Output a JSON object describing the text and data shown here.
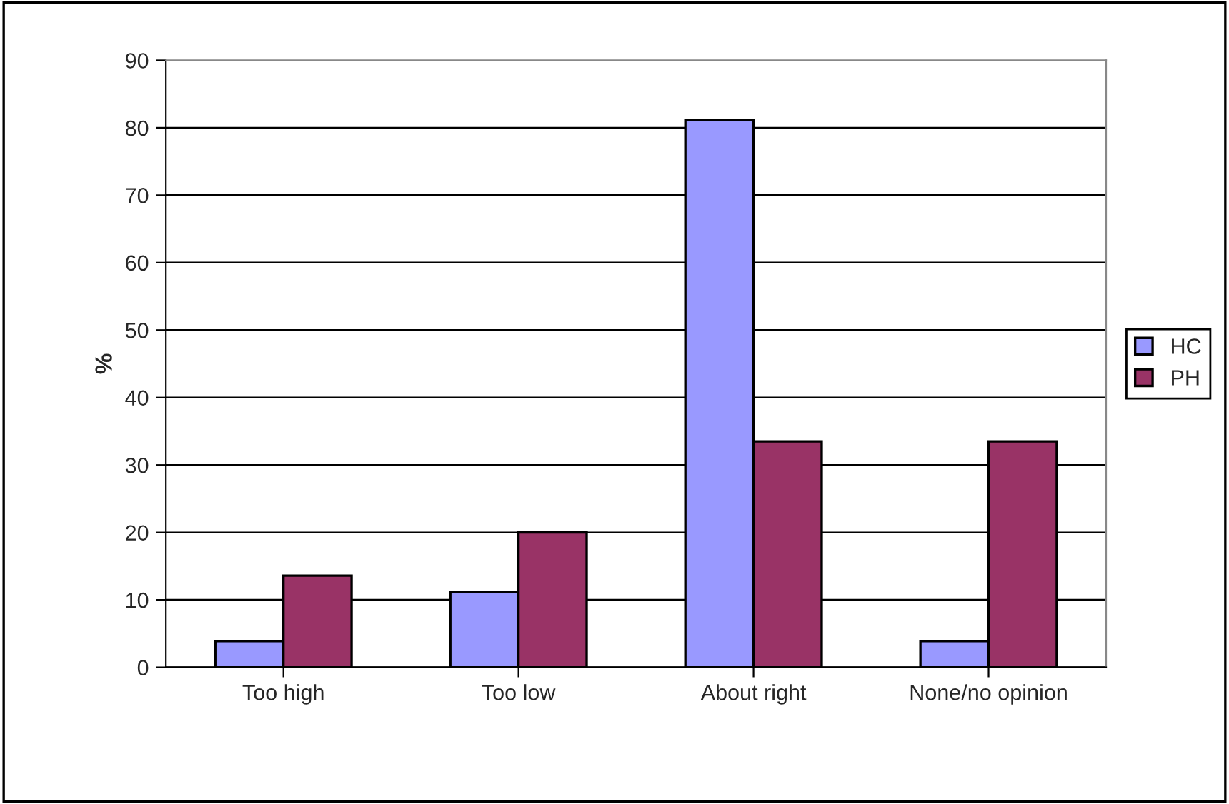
{
  "chart_data": {
    "type": "bar",
    "ylabel": "%",
    "categories": [
      "Too high",
      "Too low",
      "About right",
      "None/no opinion"
    ],
    "series": [
      {
        "name": "HC",
        "color": "#9999ff",
        "values": [
          3.9,
          11.2,
          81.2,
          3.9
        ]
      },
      {
        "name": "PH",
        "color": "#993366",
        "values": [
          13.6,
          20,
          33.5,
          33.5
        ]
      }
    ],
    "ylim": [
      0,
      90
    ],
    "yticks": [
      0,
      10,
      20,
      30,
      40,
      50,
      60,
      70,
      80,
      90
    ],
    "grid": "y",
    "legend": "right"
  }
}
